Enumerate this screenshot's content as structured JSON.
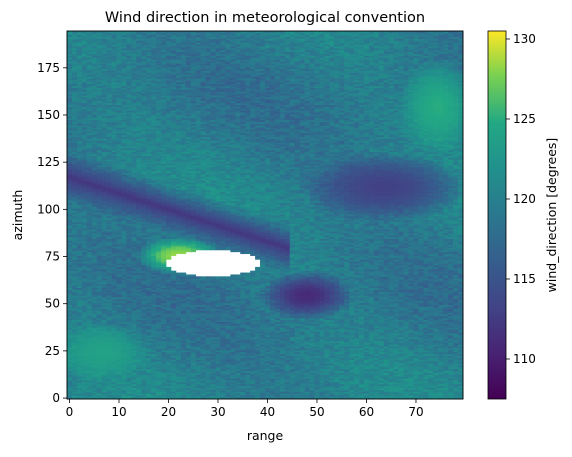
{
  "chart_data": {
    "type": "heatmap",
    "title": "Wind direction in meteorological convention",
    "xlabel": "range",
    "ylabel": "azimuth",
    "xlim": [
      0,
      80
    ],
    "ylim": [
      0,
      195
    ],
    "x_ticks": [
      0,
      10,
      20,
      30,
      40,
      50,
      60,
      70
    ],
    "y_ticks": [
      0,
      25,
      50,
      75,
      100,
      125,
      150,
      175
    ],
    "colorbar": {
      "label": "wind_direction [degrees]",
      "colormap": "viridis",
      "vmin": 107.5,
      "vmax": 130.5,
      "ticks": [
        110,
        115,
        120,
        125,
        130
      ]
    },
    "grid_resolution": {
      "nx": 80,
      "ny": 195
    },
    "base_value": 119.5,
    "features": [
      {
        "kind": "low",
        "x": [
          0,
          80
        ],
        "y": [
          100,
          125
        ],
        "value": 112,
        "note": "diagonal dark band"
      },
      {
        "kind": "low",
        "x": [
          50,
          78
        ],
        "y": [
          100,
          125
        ],
        "value": 113
      },
      {
        "kind": "low",
        "x": [
          42,
          55
        ],
        "y": [
          48,
          62
        ],
        "value": 111
      },
      {
        "kind": "high",
        "x": [
          70,
          80
        ],
        "y": [
          135,
          175
        ],
        "value": 125
      },
      {
        "kind": "high",
        "x": [
          17,
          28
        ],
        "y": [
          72,
          80
        ],
        "value": 128.5
      },
      {
        "kind": "high",
        "x": [
          0,
          14
        ],
        "y": [
          15,
          35
        ],
        "value": 124
      },
      {
        "kind": "missing",
        "x": [
          20,
          39
        ],
        "y": [
          65,
          79
        ],
        "value": null
      }
    ]
  }
}
